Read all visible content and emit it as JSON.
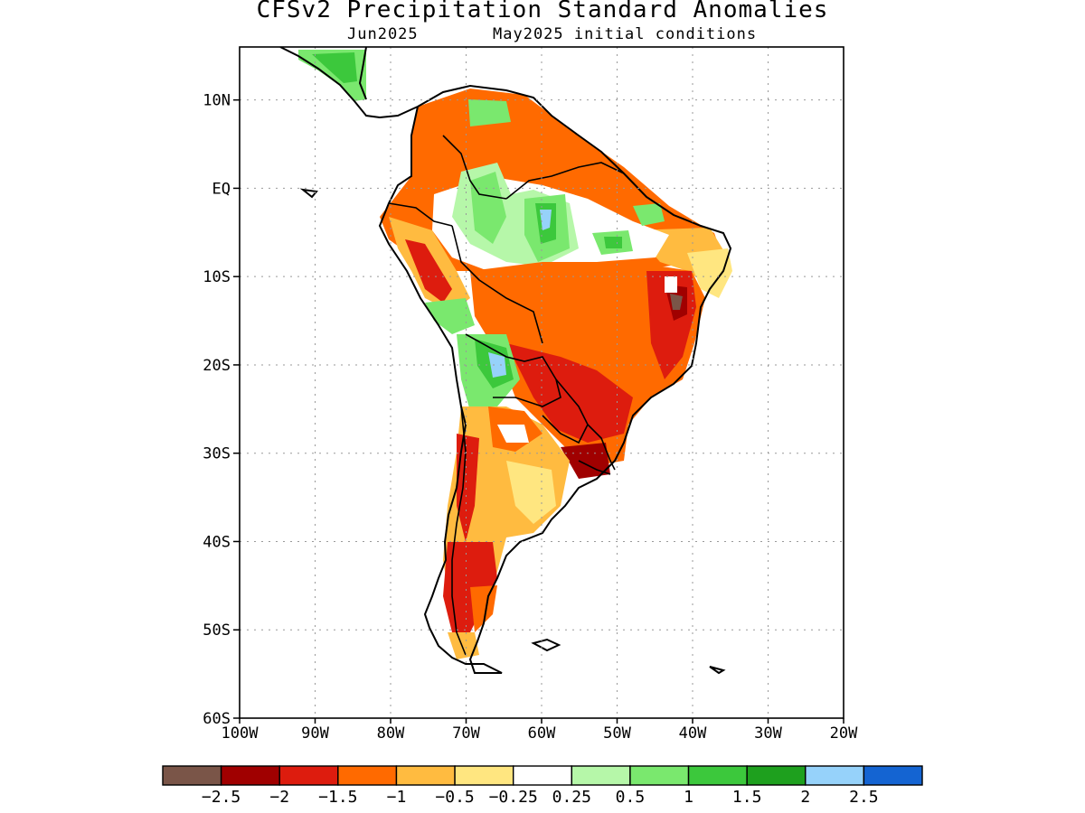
{
  "title": "CFSv2 Precipitation Standard Anomalies",
  "subtitle_left": "Jun2025",
  "subtitle_right": "May2025 initial conditions",
  "map": {
    "lon_range": [
      -100,
      -20
    ],
    "lat_range": [
      -60,
      16
    ],
    "lat_ticks": [
      {
        "v": 10,
        "label": "10N"
      },
      {
        "v": 0,
        "label": "EQ"
      },
      {
        "v": -10,
        "label": "10S"
      },
      {
        "v": -20,
        "label": "20S"
      },
      {
        "v": -30,
        "label": "30S"
      },
      {
        "v": -40,
        "label": "40S"
      },
      {
        "v": -50,
        "label": "50S"
      },
      {
        "v": -60,
        "label": "60S"
      }
    ],
    "lon_ticks": [
      {
        "v": -100,
        "label": "100W"
      },
      {
        "v": -90,
        "label": "90W"
      },
      {
        "v": -80,
        "label": "80W"
      },
      {
        "v": -70,
        "label": "70W"
      },
      {
        "v": -60,
        "label": "60W"
      },
      {
        "v": -50,
        "label": "50W"
      },
      {
        "v": -40,
        "label": "40W"
      },
      {
        "v": -30,
        "label": "30W"
      },
      {
        "v": -20,
        "label": "20W"
      }
    ],
    "grid": true
  },
  "colorbar": {
    "colors": [
      "#7a5548",
      "#a00000",
      "#dd1c0e",
      "#ff6a00",
      "#ffbb40",
      "#ffe680",
      "#ffffff",
      "#b6f7a9",
      "#7ae86e",
      "#3cc83c",
      "#1ea01e",
      "#96d2fa",
      "#1464d2"
    ],
    "labels": [
      "-2.5",
      "-2",
      "-1.5",
      "-1",
      "-0.5",
      "-0.25",
      "0.25",
      "0.5",
      "1",
      "1.5",
      "2",
      "2.5"
    ]
  }
}
